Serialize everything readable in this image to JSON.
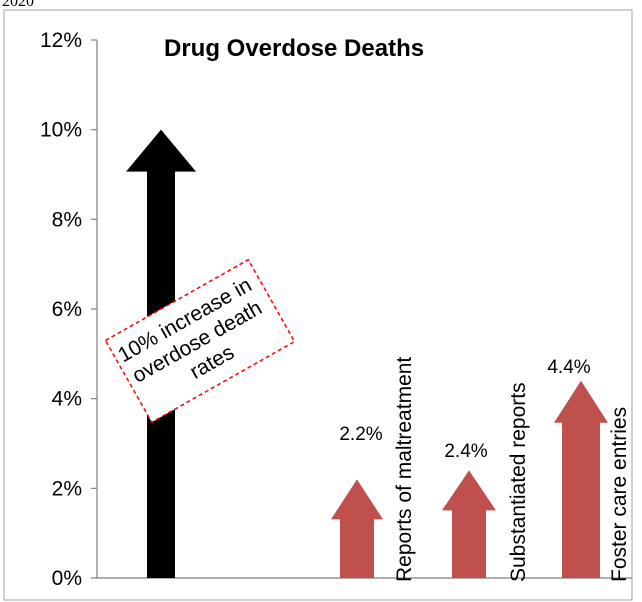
{
  "header_fragment": "2020",
  "chart_data": {
    "type": "bar",
    "title": "Drug Overdose Deaths",
    "ylim": [
      0,
      12
    ],
    "y_ticks": [
      "0%",
      "2%",
      "4%",
      "6%",
      "8%",
      "10%",
      "12%"
    ],
    "grid": false,
    "categories": [
      "",
      "Reports of maltreatment",
      "Substantiated reports",
      "Foster care entries"
    ],
    "values": [
      10,
      2.2,
      2.4,
      4.4
    ],
    "data_labels": [
      "",
      "2.2%",
      "2.4%",
      "4.4%"
    ],
    "mark_style": "up-arrow",
    "colors": [
      "#000000",
      "#c0504d",
      "#c0504d",
      "#c0504d"
    ],
    "annotation": "10% increase in overdose death rates"
  }
}
